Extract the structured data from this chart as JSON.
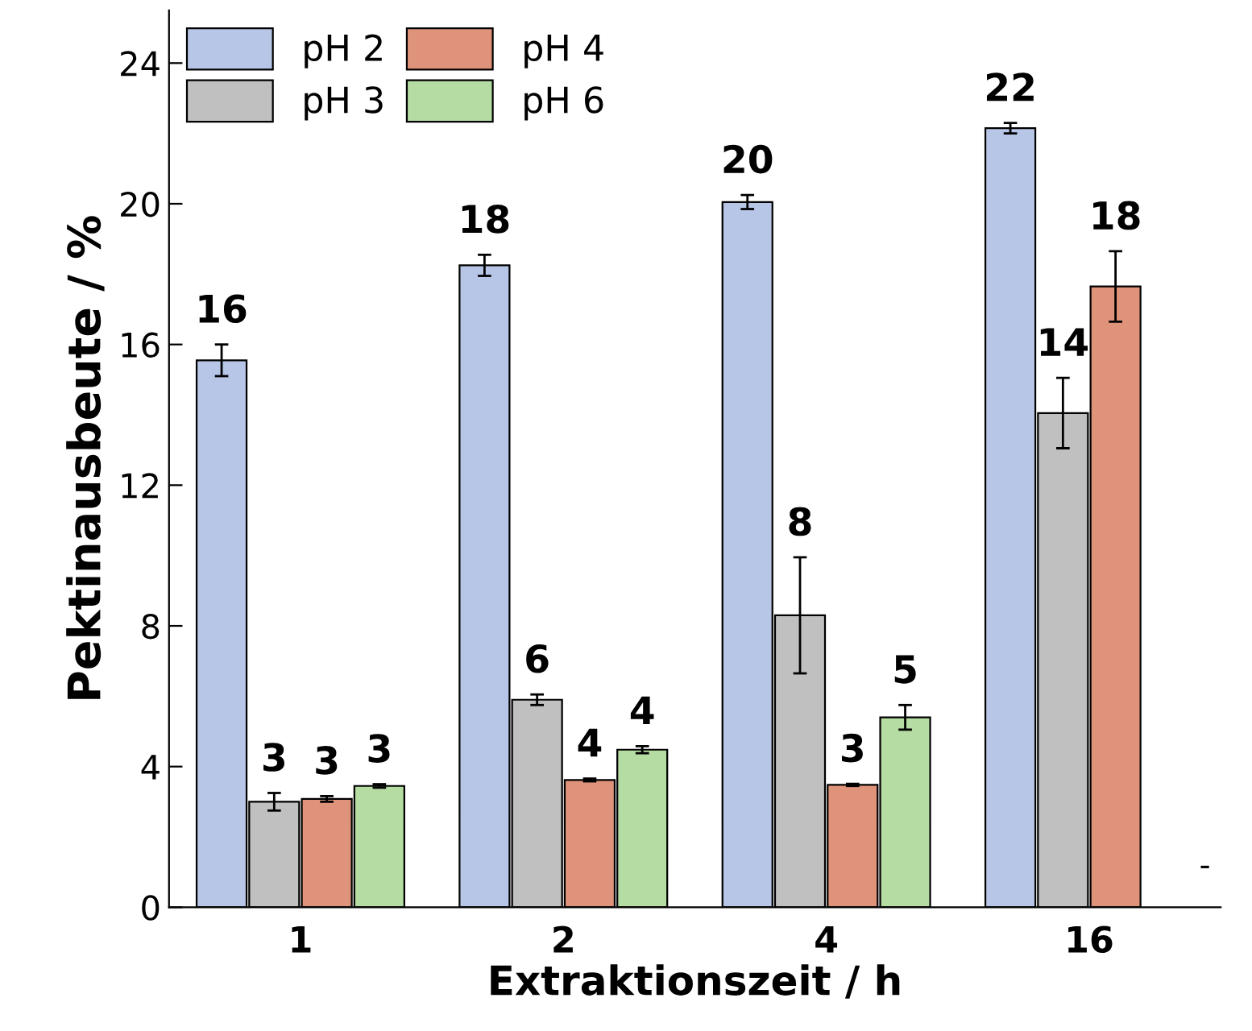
{
  "chart_data": {
    "type": "bar",
    "xlabel": "Extraktionszeit / h",
    "ylabel": "Pektinausbeute / %",
    "categories": [
      "1",
      "2",
      "4",
      "16"
    ],
    "series": [
      {
        "name": "pH 2",
        "color": "#b7c6e6",
        "values": [
          15.55,
          18.25,
          20.05,
          22.15
        ],
        "errors": [
          0.45,
          0.3,
          0.2,
          0.15
        ],
        "value_labels": [
          "16",
          "18",
          "20",
          "22"
        ]
      },
      {
        "name": "pH 3",
        "color": "#c0c0c0",
        "values": [
          3.0,
          5.9,
          8.3,
          14.05
        ],
        "errors": [
          0.25,
          0.15,
          1.65,
          1.0
        ],
        "value_labels": [
          "3",
          "6",
          "8",
          "14"
        ]
      },
      {
        "name": "pH 4",
        "color": "#e0937b",
        "values": [
          3.08,
          3.62,
          3.48,
          17.65
        ],
        "errors": [
          0.08,
          0.04,
          0.03,
          1.0
        ],
        "value_labels": [
          "3",
          "4",
          "3",
          "18"
        ]
      },
      {
        "name": "pH 6",
        "color": "#b5dca2",
        "values": [
          3.45,
          4.48,
          5.4,
          null
        ],
        "errors": [
          0.05,
          0.1,
          0.35,
          null
        ],
        "value_labels": [
          "3",
          "4",
          "5",
          null
        ]
      }
    ],
    "ylim": [
      0,
      25.5
    ],
    "yticks": [
      0,
      4,
      8,
      12,
      16,
      20,
      24
    ],
    "grid": false,
    "legend": "top left",
    "annotations": [
      "-"
    ]
  }
}
